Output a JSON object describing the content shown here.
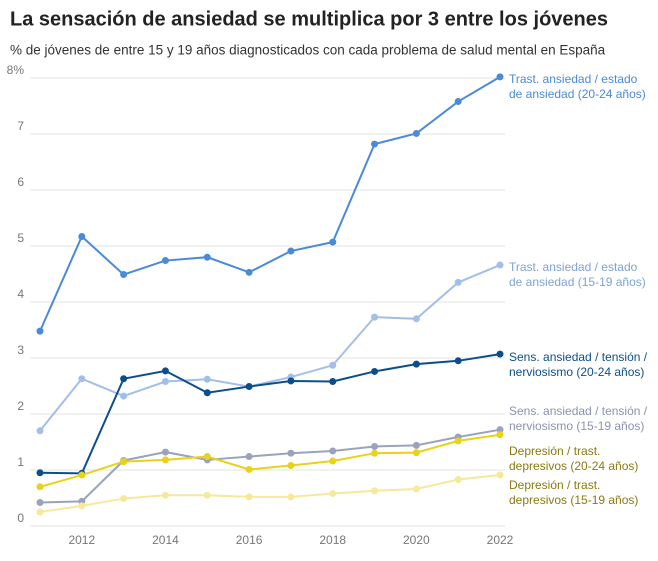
{
  "chart_data": {
    "type": "line",
    "title": "La sensación de ansiedad se multiplica por 3 entre los jóvenes",
    "subtitle": "% de jóvenes de entre 15 y 19 años diagnosticados con cada problema de salud mental en España",
    "x": [
      2011,
      2012,
      2013,
      2014,
      2015,
      2016,
      2017,
      2018,
      2019,
      2020,
      2021,
      2022
    ],
    "xlim": [
      2011,
      2022
    ],
    "xticks": [
      2012,
      2014,
      2016,
      2018,
      2020,
      2022
    ],
    "ylim": [
      0,
      8
    ],
    "yticks": [
      0,
      1,
      2,
      3,
      4,
      5,
      6,
      7,
      {
        "value": 8,
        "label": "8%"
      }
    ],
    "grid": true,
    "series": [
      {
        "name": "Trast. ansiedad / estado de ansiedad (20-24 años)",
        "color": "#4a8ad8",
        "label_color": "#4a8ad8",
        "values": [
          3.48,
          5.17,
          4.49,
          4.74,
          4.8,
          4.53,
          4.91,
          5.07,
          6.82,
          7.01,
          7.58,
          8.02
        ]
      },
      {
        "name": "Trast. ansiedad / estado de ansiedad (15-19 años)",
        "color": "#a3bfe8",
        "label_color": "#7fa3d6",
        "values": [
          1.7,
          2.63,
          2.32,
          2.58,
          2.62,
          2.49,
          2.66,
          2.87,
          3.73,
          3.7,
          4.35,
          4.66
        ]
      },
      {
        "name": "Sens. ansiedad / tensión / nerviosismo (20-24 años)",
        "color": "#0c4e8c",
        "label_color": "#0c4e8c",
        "values": [
          0.95,
          0.94,
          2.63,
          2.77,
          2.38,
          2.49,
          2.59,
          2.58,
          2.76,
          2.89,
          2.95,
          3.07
        ]
      },
      {
        "name": "Sens. ansiedad / tensión / nerviosismo (15-19 años)",
        "color": "#99a3bf",
        "label_color": "#8a93ad",
        "values": [
          0.42,
          0.44,
          1.17,
          1.32,
          1.18,
          1.24,
          1.3,
          1.34,
          1.42,
          1.44,
          1.59,
          1.72
        ]
      },
      {
        "name": "Depresión / trast. depresivos (20-24 años)",
        "color": "#e8d21a",
        "label_color": "#8a7a10",
        "values": [
          0.7,
          0.91,
          1.15,
          1.18,
          1.24,
          1.01,
          1.08,
          1.16,
          1.3,
          1.31,
          1.52,
          1.63
        ]
      },
      {
        "name": "Depresión / trast. depresivos (15-19 años)",
        "color": "#f5e99a",
        "label_color": "#8a7a10",
        "values": [
          0.25,
          0.36,
          0.49,
          0.55,
          0.55,
          0.52,
          0.52,
          0.58,
          0.63,
          0.66,
          0.83,
          0.91
        ]
      }
    ]
  }
}
